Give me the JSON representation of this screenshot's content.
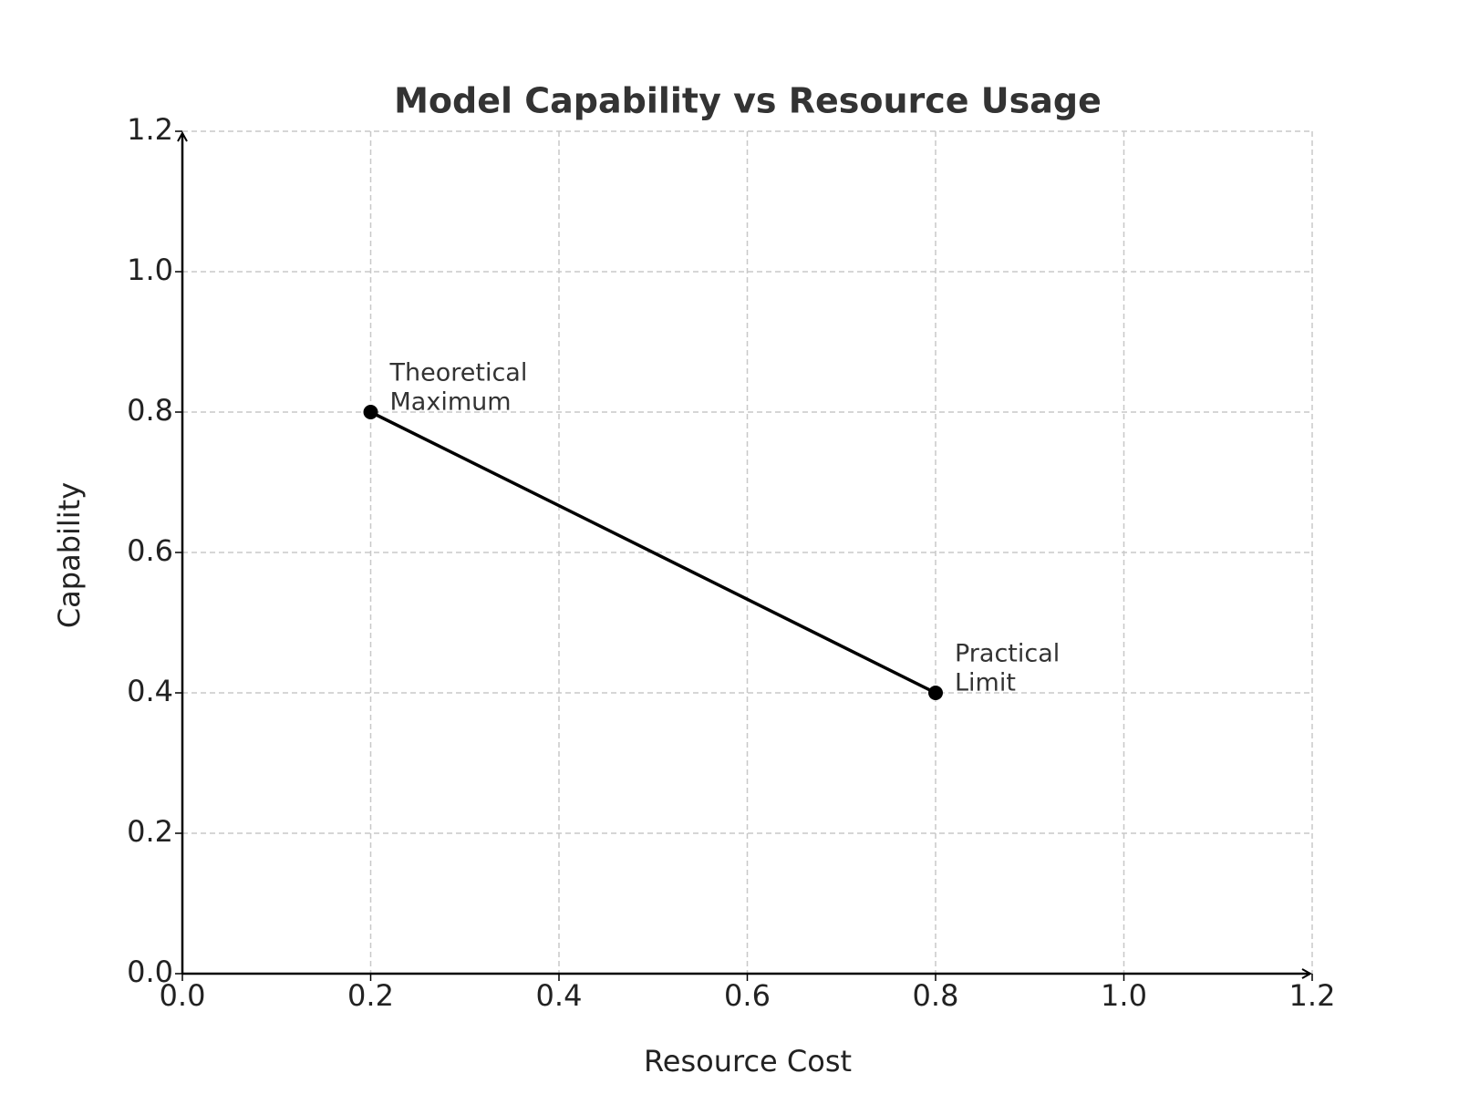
{
  "chart_data": {
    "type": "line",
    "title": "Model Capability vs Resource Usage",
    "x_label": "Resource Cost",
    "y_label": "Capability",
    "x": [
      0.2,
      0.8
    ],
    "series": [
      {
        "name": "Capability",
        "color": "#000000",
        "values": [
          0.8,
          0.4
        ]
      }
    ],
    "annotations": [
      {
        "lines": [
          "Theoretical",
          "Maximum"
        ],
        "x": 0.2,
        "y": 0.8
      },
      {
        "lines": [
          "Practical",
          "Limit"
        ],
        "x": 0.8,
        "y": 0.4
      }
    ],
    "xlim": [
      0,
      1.2
    ],
    "ylim": [
      0,
      1.2
    ],
    "xticks": [
      {
        "value": 0,
        "label": "0.0"
      },
      0.2,
      0.4,
      0.6,
      0.8,
      {
        "value": 1,
        "label": "1.0"
      },
      1.2
    ],
    "yticks": [
      {
        "value": 0,
        "label": "0.0"
      },
      0.2,
      0.4,
      0.6,
      0.8,
      {
        "value": 1,
        "label": "1.0"
      },
      1.2
    ],
    "grid": true
  }
}
